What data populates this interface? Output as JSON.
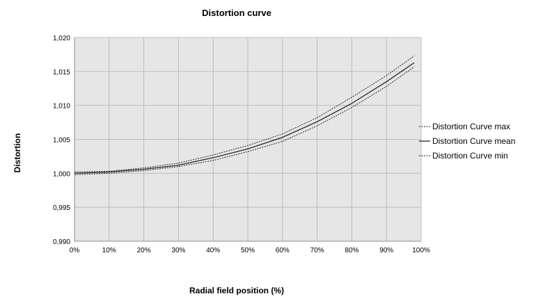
{
  "chart_data": {
    "type": "line",
    "title": "Distortion curve",
    "xlabel": "Radial field position (%)",
    "ylabel": "Distortion",
    "x_tick_labels": [
      "0%",
      "10%",
      "20%",
      "30%",
      "40%",
      "50%",
      "60%",
      "70%",
      "80%",
      "90%",
      "100%"
    ],
    "y_tick_labels": [
      "0,990",
      "0,995",
      "1,000",
      "1,005",
      "1,010",
      "1,015",
      "1,020"
    ],
    "xlim": [
      0,
      100
    ],
    "ylim": [
      0.99,
      1.02
    ],
    "grid": true,
    "legend_position": "right",
    "x": [
      0,
      10,
      20,
      30,
      40,
      50,
      60,
      70,
      80,
      90,
      98
    ],
    "series": [
      {
        "name": "Distortion Curve max",
        "style": "dotted",
        "color": "#222222",
        "values": [
          1.0002,
          1.0003,
          1.0008,
          1.0015,
          1.0027,
          1.0041,
          1.0058,
          1.0082,
          1.0112,
          1.0144,
          1.0173
        ]
      },
      {
        "name": "Distortion Curve mean",
        "style": "solid",
        "color": "#333333",
        "values": [
          1.0,
          1.0002,
          1.0006,
          1.0012,
          1.0023,
          1.0036,
          1.0053,
          1.0076,
          1.0103,
          1.0135,
          1.0163
        ]
      },
      {
        "name": "Distortion Curve min",
        "style": "dotted",
        "color": "#222222",
        "values": [
          0.9998,
          1.0,
          1.0004,
          1.001,
          1.0019,
          1.0032,
          1.0047,
          1.007,
          1.0097,
          1.0128,
          1.0157
        ]
      }
    ],
    "colors": {
      "plot_background": "#e6e6e6",
      "grid": "#bcbcbc",
      "axis": "#8c8c8c"
    }
  }
}
